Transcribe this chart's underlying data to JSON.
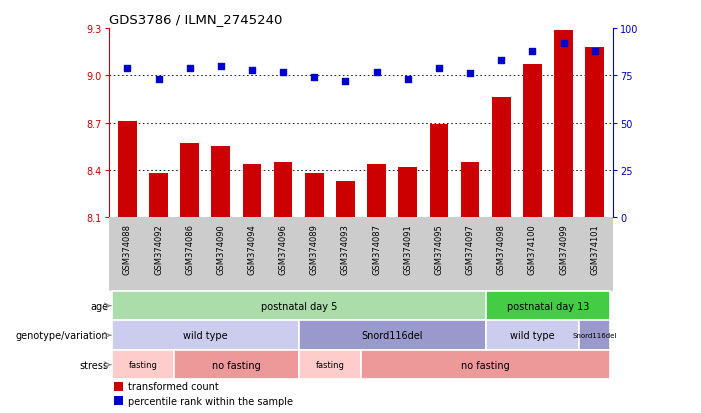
{
  "title": "GDS3786 / ILMN_2745240",
  "samples": [
    "GSM374088",
    "GSM374092",
    "GSM374086",
    "GSM374090",
    "GSM374094",
    "GSM374096",
    "GSM374089",
    "GSM374093",
    "GSM374087",
    "GSM374091",
    "GSM374095",
    "GSM374097",
    "GSM374098",
    "GSM374100",
    "GSM374099",
    "GSM374101"
  ],
  "bar_values": [
    8.71,
    8.38,
    8.57,
    8.55,
    8.44,
    8.45,
    8.38,
    8.33,
    8.44,
    8.42,
    8.69,
    8.45,
    8.86,
    9.07,
    9.29,
    9.18
  ],
  "percentile_values": [
    79,
    73,
    79,
    80,
    78,
    77,
    74,
    72,
    77,
    73,
    79,
    76,
    83,
    88,
    92,
    88
  ],
  "ylim_left": [
    8.1,
    9.3
  ],
  "ylim_right": [
    0,
    100
  ],
  "yticks_left": [
    8.1,
    8.4,
    8.7,
    9.0,
    9.3
  ],
  "yticks_right": [
    0,
    25,
    50,
    75,
    100
  ],
  "bar_color": "#cc0000",
  "dot_color": "#0000cc",
  "background_color": "#ffffff",
  "age_row": {
    "label": "age",
    "segments": [
      {
        "text": "postnatal day 5",
        "start": 0,
        "end": 12,
        "color": "#aaddaa"
      },
      {
        "text": "postnatal day 13",
        "start": 12,
        "end": 16,
        "color": "#44cc44"
      }
    ]
  },
  "genotype_row": {
    "label": "genotype/variation",
    "segments": [
      {
        "text": "wild type",
        "start": 0,
        "end": 6,
        "color": "#ccccee"
      },
      {
        "text": "Snord116del",
        "start": 6,
        "end": 12,
        "color": "#9999cc"
      },
      {
        "text": "wild type",
        "start": 12,
        "end": 15,
        "color": "#ccccee"
      },
      {
        "text": "Snord116del",
        "start": 15,
        "end": 16,
        "color": "#9999cc"
      }
    ]
  },
  "stress_row": {
    "label": "stress",
    "segments": [
      {
        "text": "fasting",
        "start": 0,
        "end": 2,
        "color": "#ffcccc"
      },
      {
        "text": "no fasting",
        "start": 2,
        "end": 6,
        "color": "#ee9999"
      },
      {
        "text": "fasting",
        "start": 6,
        "end": 8,
        "color": "#ffcccc"
      },
      {
        "text": "no fasting",
        "start": 8,
        "end": 16,
        "color": "#ee9999"
      }
    ]
  },
  "legend_items": [
    {
      "color": "#cc0000",
      "label": "transformed count"
    },
    {
      "color": "#0000cc",
      "label": "percentile rank within the sample"
    }
  ],
  "dotted_line_color": "#000000",
  "tick_label_color_left": "#cc0000",
  "tick_label_color_right": "#0000cc",
  "xticklabel_bg": "#cccccc",
  "label_arrow_color": "#888888"
}
